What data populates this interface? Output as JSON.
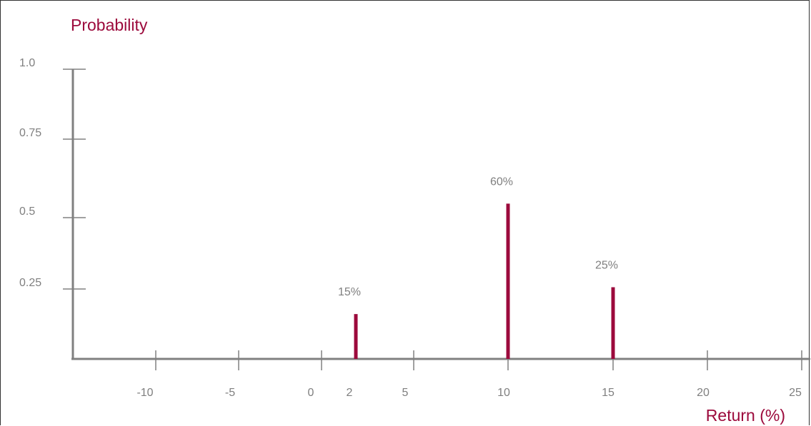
{
  "chart_data": {
    "type": "bar",
    "title": "",
    "ylabel": "Probability",
    "xlabel": "Return (%)",
    "x": [
      2,
      10,
      15
    ],
    "values": [
      0.15,
      0.6,
      0.25
    ],
    "data_labels": [
      "15%",
      "60%",
      "25%"
    ],
    "xlim": [
      -14,
      25.5
    ],
    "ylim": [
      0,
      1.0
    ],
    "xticks": [
      -10,
      -5,
      0,
      2,
      5,
      10,
      15,
      20,
      25
    ],
    "xtick_labels": [
      "-10",
      "-5",
      "0",
      "2",
      "5",
      "10",
      "15",
      "20",
      "25"
    ],
    "yticks": [
      0.25,
      0.5,
      0.75,
      1.0
    ],
    "ytick_labels": [
      "0.25",
      "0.5",
      "0.75",
      "1.0"
    ],
    "grid": false,
    "colors": {
      "bar": "#9c0a3c",
      "axis": "#808080",
      "text": "#7f7f7f",
      "title": "#9c0a3c"
    }
  }
}
